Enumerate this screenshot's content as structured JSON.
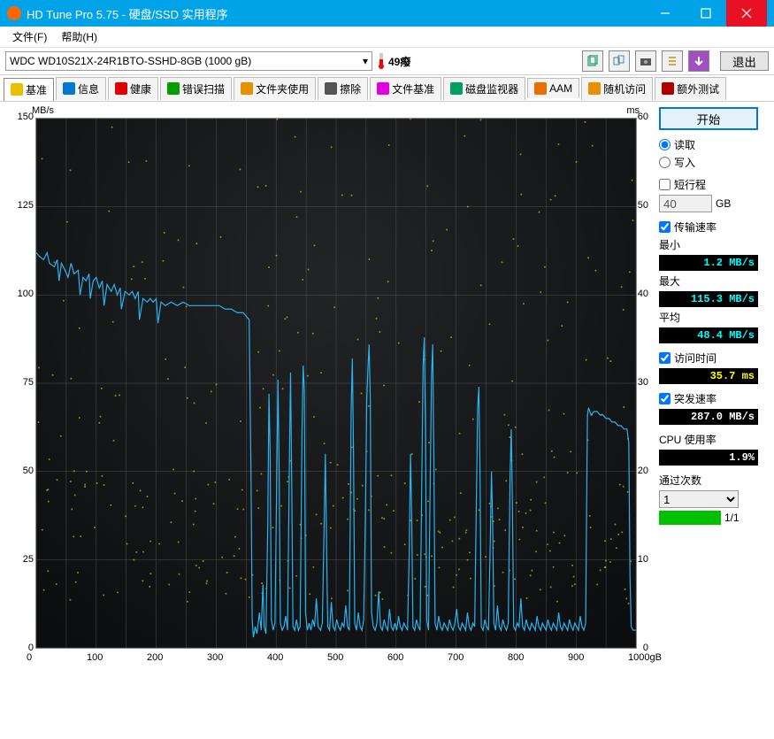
{
  "window": {
    "title": "HD Tune Pro 5.75 - 硬盘/SSD 实用程序"
  },
  "menu": {
    "file": "文件(F)",
    "help": "帮助(H)"
  },
  "toolbar": {
    "drive": "WDC WD10S21X-24R1BTO-SSHD-8GB (1000 gB)",
    "temp": "49癈",
    "exit": "退出"
  },
  "tabs": [
    {
      "label": "基准",
      "active": true
    },
    {
      "label": "信息",
      "active": false
    },
    {
      "label": "健康",
      "active": false
    },
    {
      "label": "错误扫描",
      "active": false
    },
    {
      "label": "文件夹使用",
      "active": false
    },
    {
      "label": "擦除",
      "active": false
    },
    {
      "label": "文件基准",
      "active": false
    },
    {
      "label": "磁盘监视器",
      "active": false
    },
    {
      "label": "AAM",
      "active": false
    },
    {
      "label": "随机访问",
      "active": false
    },
    {
      "label": "额外测试",
      "active": false
    }
  ],
  "chart": {
    "y_unit": "MB/s",
    "y2_unit": "ms",
    "x_unit": "gB",
    "ylim": [
      0,
      150
    ],
    "ytick_step": 25,
    "y2lim": [
      0,
      60
    ],
    "y2tick_step": 10,
    "xlim": [
      0,
      1000
    ],
    "xtick_step": 100,
    "bg_inner": "#1f2123",
    "bg_outer": "#0a0b0c",
    "grid_color": "#505050",
    "line_color": "#29b3f0",
    "scatter_color": "#f2f200",
    "scatter_opacity": 0.55,
    "line_data": [
      [
        0,
        112
      ],
      [
        5,
        111
      ],
      [
        12,
        110
      ],
      [
        18,
        112
      ],
      [
        22,
        109
      ],
      [
        30,
        108
      ],
      [
        35,
        110
      ],
      [
        38,
        104
      ],
      [
        42,
        109
      ],
      [
        48,
        107
      ],
      [
        53,
        105
      ],
      [
        58,
        109
      ],
      [
        63,
        106
      ],
      [
        70,
        107
      ],
      [
        73,
        100
      ],
      [
        78,
        105
      ],
      [
        83,
        104
      ],
      [
        88,
        106
      ],
      [
        90,
        99
      ],
      [
        95,
        104
      ],
      [
        100,
        105
      ],
      [
        105,
        102
      ],
      [
        110,
        104
      ],
      [
        113,
        97
      ],
      [
        118,
        103
      ],
      [
        125,
        101
      ],
      [
        130,
        103
      ],
      [
        135,
        100
      ],
      [
        140,
        102
      ],
      [
        142,
        96
      ],
      [
        148,
        101
      ],
      [
        155,
        100
      ],
      [
        160,
        101
      ],
      [
        165,
        99
      ],
      [
        170,
        101
      ],
      [
        172,
        93
      ],
      [
        178,
        99
      ],
      [
        185,
        98
      ],
      [
        190,
        99
      ],
      [
        195,
        98
      ],
      [
        200,
        99
      ],
      [
        203,
        92
      ],
      [
        208,
        98
      ],
      [
        215,
        97
      ],
      [
        225,
        98
      ],
      [
        235,
        97
      ],
      [
        245,
        98
      ],
      [
        255,
        97
      ],
      [
        265,
        97
      ],
      [
        275,
        97
      ],
      [
        285,
        97
      ],
      [
        295,
        97
      ],
      [
        305,
        97
      ],
      [
        315,
        96
      ],
      [
        325,
        96
      ],
      [
        335,
        95
      ],
      [
        345,
        95
      ],
      [
        350,
        94
      ],
      [
        355,
        93
      ],
      [
        358,
        50
      ],
      [
        360,
        8
      ],
      [
        362,
        3
      ],
      [
        365,
        6
      ],
      [
        368,
        4
      ],
      [
        372,
        10
      ],
      [
        375,
        5
      ],
      [
        378,
        18
      ],
      [
        380,
        6
      ],
      [
        383,
        4
      ],
      [
        386,
        35
      ],
      [
        388,
        72
      ],
      [
        390,
        55
      ],
      [
        392,
        8
      ],
      [
        395,
        5
      ],
      [
        398,
        7
      ],
      [
        401,
        48
      ],
      [
        403,
        76
      ],
      [
        405,
        50
      ],
      [
        407,
        7
      ],
      [
        410,
        5
      ],
      [
        413,
        6
      ],
      [
        416,
        9
      ],
      [
        419,
        5
      ],
      [
        422,
        52
      ],
      [
        424,
        78
      ],
      [
        426,
        46
      ],
      [
        428,
        6
      ],
      [
        431,
        5
      ],
      [
        434,
        8
      ],
      [
        437,
        5
      ],
      [
        440,
        6
      ],
      [
        443,
        60
      ],
      [
        445,
        80
      ],
      [
        447,
        73
      ],
      [
        449,
        10
      ],
      [
        452,
        5
      ],
      [
        455,
        7
      ],
      [
        458,
        5
      ],
      [
        461,
        8
      ],
      [
        464,
        6
      ],
      [
        467,
        14
      ],
      [
        470,
        6
      ],
      [
        474,
        5
      ],
      [
        477,
        7
      ],
      [
        480,
        35
      ],
      [
        482,
        55
      ],
      [
        484,
        30
      ],
      [
        486,
        6
      ],
      [
        489,
        5
      ],
      [
        492,
        13
      ],
      [
        495,
        6
      ],
      [
        498,
        5
      ],
      [
        501,
        8
      ],
      [
        504,
        6
      ],
      [
        507,
        5
      ],
      [
        510,
        7
      ],
      [
        513,
        6
      ],
      [
        516,
        12
      ],
      [
        519,
        6
      ],
      [
        522,
        5
      ],
      [
        525,
        67
      ],
      [
        527,
        82
      ],
      [
        529,
        55
      ],
      [
        531,
        7
      ],
      [
        534,
        5
      ],
      [
        537,
        10
      ],
      [
        540,
        6
      ],
      [
        543,
        5
      ],
      [
        546,
        8
      ],
      [
        549,
        40
      ],
      [
        551,
        70
      ],
      [
        553,
        79
      ],
      [
        555,
        86
      ],
      [
        557,
        70
      ],
      [
        559,
        10
      ],
      [
        562,
        6
      ],
      [
        565,
        5
      ],
      [
        568,
        7
      ],
      [
        571,
        16
      ],
      [
        574,
        6
      ],
      [
        577,
        5
      ],
      [
        580,
        8
      ],
      [
        583,
        6
      ],
      [
        586,
        5
      ],
      [
        589,
        11
      ],
      [
        592,
        6
      ],
      [
        595,
        5
      ],
      [
        598,
        7
      ],
      [
        601,
        5
      ],
      [
        604,
        9
      ],
      [
        607,
        6
      ],
      [
        610,
        5
      ],
      [
        613,
        7
      ],
      [
        616,
        6
      ],
      [
        619,
        5
      ],
      [
        622,
        28
      ],
      [
        624,
        55
      ],
      [
        626,
        38
      ],
      [
        628,
        6
      ],
      [
        631,
        5
      ],
      [
        634,
        8
      ],
      [
        637,
        6
      ],
      [
        640,
        5
      ],
      [
        643,
        50
      ],
      [
        645,
        80
      ],
      [
        647,
        88
      ],
      [
        649,
        62
      ],
      [
        651,
        8
      ],
      [
        654,
        5
      ],
      [
        657,
        49
      ],
      [
        659,
        77
      ],
      [
        661,
        86
      ],
      [
        663,
        53
      ],
      [
        665,
        7
      ],
      [
        668,
        5
      ],
      [
        671,
        9
      ],
      [
        674,
        6
      ],
      [
        677,
        5
      ],
      [
        680,
        7
      ],
      [
        683,
        6
      ],
      [
        686,
        5
      ],
      [
        689,
        8
      ],
      [
        692,
        6
      ],
      [
        695,
        5
      ],
      [
        698,
        7
      ],
      [
        701,
        11
      ],
      [
        704,
        6
      ],
      [
        707,
        5
      ],
      [
        710,
        7
      ],
      [
        713,
        6
      ],
      [
        716,
        5
      ],
      [
        719,
        10
      ],
      [
        722,
        6
      ],
      [
        725,
        5
      ],
      [
        728,
        7
      ],
      [
        731,
        6
      ],
      [
        734,
        44
      ],
      [
        736,
        68
      ],
      [
        738,
        74
      ],
      [
        740,
        48
      ],
      [
        742,
        6
      ],
      [
        745,
        5
      ],
      [
        748,
        8
      ],
      [
        751,
        6
      ],
      [
        754,
        5
      ],
      [
        757,
        30
      ],
      [
        759,
        50
      ],
      [
        761,
        35
      ],
      [
        763,
        7
      ],
      [
        766,
        5
      ],
      [
        769,
        12
      ],
      [
        772,
        6
      ],
      [
        775,
        5
      ],
      [
        778,
        8
      ],
      [
        781,
        6
      ],
      [
        784,
        5
      ],
      [
        787,
        7
      ],
      [
        790,
        49
      ],
      [
        792,
        62
      ],
      [
        794,
        40
      ],
      [
        796,
        6
      ],
      [
        799,
        5
      ],
      [
        802,
        7
      ],
      [
        805,
        6
      ],
      [
        808,
        14
      ],
      [
        811,
        6
      ],
      [
        814,
        5
      ],
      [
        817,
        8
      ],
      [
        820,
        6
      ],
      [
        823,
        5
      ],
      [
        826,
        7
      ],
      [
        829,
        6
      ],
      [
        832,
        5
      ],
      [
        835,
        9
      ],
      [
        838,
        6
      ],
      [
        841,
        5
      ],
      [
        844,
        7
      ],
      [
        847,
        6
      ],
      [
        850,
        5
      ],
      [
        853,
        8
      ],
      [
        856,
        6
      ],
      [
        859,
        5
      ],
      [
        862,
        7
      ],
      [
        865,
        6
      ],
      [
        868,
        5
      ],
      [
        871,
        10
      ],
      [
        874,
        6
      ],
      [
        877,
        5
      ],
      [
        880,
        7
      ],
      [
        883,
        6
      ],
      [
        886,
        5
      ],
      [
        889,
        8
      ],
      [
        892,
        6
      ],
      [
        895,
        5
      ],
      [
        898,
        7
      ],
      [
        901,
        6
      ],
      [
        904,
        5
      ],
      [
        907,
        9
      ],
      [
        910,
        6
      ],
      [
        913,
        5
      ],
      [
        916,
        7
      ],
      [
        919,
        66
      ],
      [
        921,
        68
      ],
      [
        925,
        66
      ],
      [
        930,
        67
      ],
      [
        935,
        67
      ],
      [
        940,
        66
      ],
      [
        945,
        66
      ],
      [
        950,
        65
      ],
      [
        955,
        65
      ],
      [
        960,
        64
      ],
      [
        965,
        64
      ],
      [
        970,
        63
      ],
      [
        975,
        63
      ],
      [
        980,
        62
      ],
      [
        985,
        62
      ],
      [
        988,
        58
      ],
      [
        990,
        20
      ],
      [
        992,
        6
      ],
      [
        995,
        5
      ],
      [
        1000,
        5
      ]
    ],
    "scatter_n": 380
  },
  "side": {
    "start": "开始",
    "read": "读取",
    "write": "写入",
    "short_stroke": "短行程",
    "stroke_val": "40",
    "stroke_unit": "GB",
    "transfer_rate": "传输速率",
    "min_l": "最小",
    "min_v": "1.2 MB/s",
    "max_l": "最大",
    "max_v": "115.3 MB/s",
    "avg_l": "平均",
    "avg_v": "48.4 MB/s",
    "access_l": "访问时间",
    "access_v": "35.7 ms",
    "burst_l": "突发速率",
    "burst_v": "287.0 MB/s",
    "cpu_l": "CPU 使用率",
    "cpu_v": "1.9%",
    "passes_l": "通过次数",
    "passes_sel": "1",
    "passes_r": "1/1"
  }
}
